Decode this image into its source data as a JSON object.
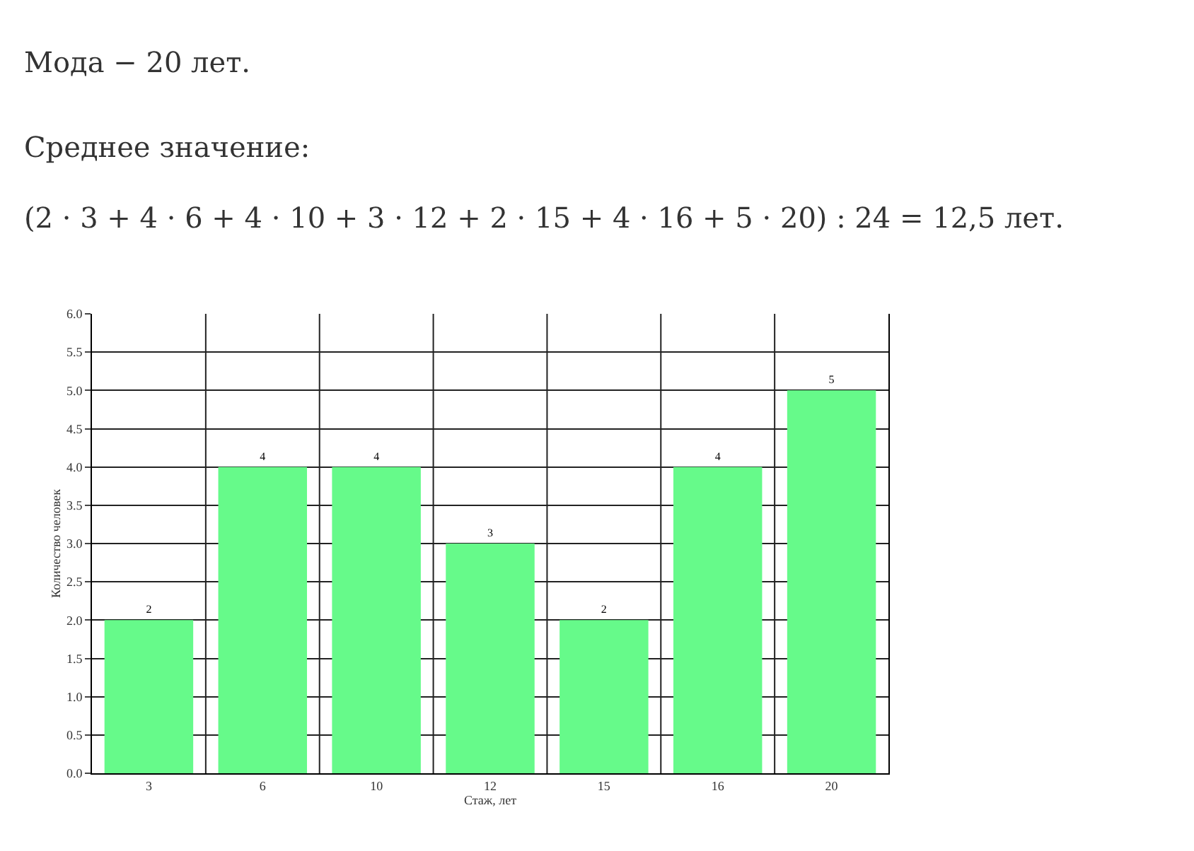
{
  "chart_data": {
    "type": "bar",
    "annotations": [
      "Мода − 20 лет.",
      "Среднее значение:",
      "(2 · 3 + 4 · 6 + 4 · 10 + 3 · 12 + 2 · 15 + 4 · 16 + 5 · 20) : 24 = 12,5 лет."
    ],
    "categories": [
      "3",
      "6",
      "10",
      "12",
      "15",
      "16",
      "20"
    ],
    "values": [
      2,
      4,
      4,
      3,
      2,
      4,
      5
    ],
    "color": "#66fa8a",
    "xlabel": "Стаж, лет",
    "ylabel": "Количество человек",
    "ylim": [
      0,
      6
    ],
    "yticks": [
      {
        "value": 0,
        "label": "0.0"
      },
      {
        "value": 0.5,
        "label": "0.5"
      },
      {
        "value": 1,
        "label": "1.0"
      },
      {
        "value": 1.5,
        "label": "1.5"
      },
      {
        "value": 2,
        "label": "2.0"
      },
      {
        "value": 2.5,
        "label": "2.5"
      },
      {
        "value": 3,
        "label": "3.0"
      },
      {
        "value": 3.5,
        "label": "3.5"
      },
      {
        "value": 4,
        "label": "4.0"
      },
      {
        "value": 4.5,
        "label": "4.5"
      },
      {
        "value": 5,
        "label": "5.0"
      },
      {
        "value": 5.5,
        "label": "5.5"
      },
      {
        "value": 6,
        "label": "6.0"
      }
    ],
    "data_labels": true,
    "grid": true
  }
}
